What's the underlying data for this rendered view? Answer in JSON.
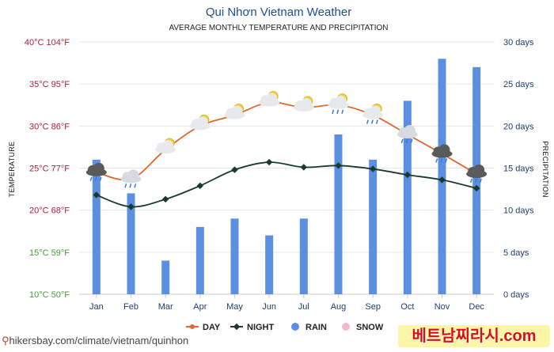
{
  "chart_data": {
    "type": "bar+line",
    "title": "Qui Nhơn Vietnam Weather",
    "subtitle": "AVERAGE MONTHLY TEMPERATURE AND PRECIPITATION",
    "categories": [
      "Jan",
      "Feb",
      "Mar",
      "Apr",
      "May",
      "Jun",
      "Jul",
      "Aug",
      "Sep",
      "Oct",
      "Nov",
      "Dec"
    ],
    "series": [
      {
        "name": "DAY",
        "type": "line",
        "axis": "temperature_c",
        "color": "#e0692f",
        "values": [
          24.5,
          23.7,
          27.2,
          30.0,
          31.3,
          32.8,
          32.2,
          32.5,
          31.3,
          29.0,
          26.7,
          24.3
        ]
      },
      {
        "name": "NIGHT",
        "type": "line",
        "axis": "temperature_c",
        "color": "#1b3a2c",
        "values": [
          21.8,
          20.4,
          21.3,
          22.9,
          24.8,
          25.7,
          25.1,
          25.3,
          24.9,
          24.2,
          23.6,
          22.6
        ]
      },
      {
        "name": "RAIN",
        "type": "bar",
        "axis": "days",
        "color": "#5b8fe0",
        "values": [
          16,
          12,
          4,
          8,
          9,
          7,
          9,
          19,
          16,
          23,
          28,
          27
        ]
      },
      {
        "name": "SNOW",
        "type": "bar",
        "axis": "days",
        "color": "#f5b8c6",
        "values": [
          0,
          0,
          0,
          0,
          0,
          0,
          0,
          0,
          0,
          0,
          0,
          0
        ]
      }
    ],
    "y_left": {
      "label": "TEMPERATURE",
      "range": [
        10,
        40
      ],
      "ticks": [
        {
          "value": 40,
          "label": "40°C 104°F",
          "color": "#b01c3c"
        },
        {
          "value": 35,
          "label": "35°C 95°F",
          "color": "#b01c3c"
        },
        {
          "value": 30,
          "label": "30°C 86°F",
          "color": "#b01c3c"
        },
        {
          "value": 25,
          "label": "25°C 77°F",
          "color": "#b01c3c"
        },
        {
          "value": 20,
          "label": "20°C 68°F",
          "color": "#b01c3c"
        },
        {
          "value": 15,
          "label": "15°C 59°F",
          "color": "#4a9a3a"
        },
        {
          "value": 10,
          "label": "10°C 50°F",
          "color": "#4a9a3a"
        }
      ]
    },
    "y_right": {
      "label": "PRECIPITATION",
      "range": [
        0,
        30
      ],
      "ticks": [
        {
          "value": 30,
          "label": "30 days"
        },
        {
          "value": 25,
          "label": "25 days"
        },
        {
          "value": 20,
          "label": "20 days"
        },
        {
          "value": 15,
          "label": "15 days"
        },
        {
          "value": 10,
          "label": "10 days"
        },
        {
          "value": 5,
          "label": "5 days"
        },
        {
          "value": 0,
          "label": "0 days"
        }
      ]
    },
    "day_icons": [
      "storm",
      "cloud-rain",
      "sun-cloud",
      "sun-cloud",
      "sun-cloud",
      "sun-cloud",
      "sun-cloud",
      "sun-cloud-rain",
      "sun-cloud-rain",
      "cloud-rain",
      "storm",
      "storm"
    ],
    "grid": true,
    "legend_position": "bottom-center"
  },
  "source": "hikersbay.com/climate/vietnam/quinhon",
  "watermark": "베트남찌라시.com"
}
